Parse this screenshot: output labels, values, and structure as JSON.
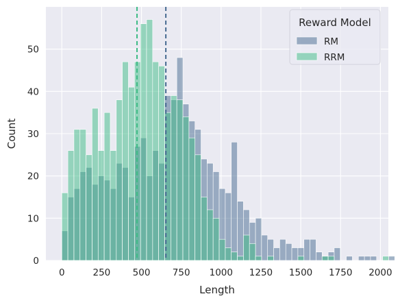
{
  "chart_data": {
    "type": "bar",
    "subtype": "overlapping-histogram",
    "title": "",
    "xlabel": "Length",
    "ylabel": "Count",
    "xlim": [
      -100,
      2050
    ],
    "ylim": [
      0,
      60
    ],
    "x_ticks": [
      0,
      250,
      500,
      750,
      1000,
      1250,
      1500,
      1750,
      2000
    ],
    "y_ticks": [
      0,
      10,
      20,
      30,
      40,
      50
    ],
    "bin_start": 0,
    "bin_width": 38,
    "grid": true,
    "background": "#EAEAF2",
    "legend": {
      "title": "Reward Model",
      "position": "top-right",
      "entries": [
        {
          "label": "RM",
          "color": "#456990"
        },
        {
          "label": "RRM",
          "color": "#3DBB85"
        }
      ]
    },
    "series": [
      {
        "name": "RM",
        "color": "#456990",
        "mean_line": 653,
        "values": [
          7,
          15,
          17,
          21,
          22,
          18,
          20,
          19,
          17,
          23,
          22,
          15,
          27,
          29,
          20,
          26,
          23,
          39,
          38,
          48,
          37,
          33,
          31,
          24,
          23,
          21,
          17,
          16,
          28,
          14,
          12,
          9,
          10,
          6,
          5,
          3,
          5,
          4,
          3,
          3,
          5,
          5,
          2,
          1,
          2,
          3,
          0,
          1,
          0,
          1,
          1,
          1,
          0,
          0,
          1
        ]
      },
      {
        "name": "RRM",
        "color": "#3DBB85",
        "mean_line": 472,
        "values": [
          16,
          26,
          31,
          31,
          25,
          36,
          26,
          35,
          26,
          38,
          47,
          41,
          47,
          56,
          57,
          47,
          46,
          35,
          39,
          38,
          34,
          29,
          25,
          15,
          12,
          10,
          5,
          3,
          2,
          1,
          6,
          4,
          1,
          0,
          1,
          0,
          0,
          0,
          0,
          1,
          0,
          0,
          0,
          1,
          1,
          0,
          0,
          0,
          0,
          0,
          0,
          0,
          0,
          1,
          0
        ]
      }
    ]
  }
}
